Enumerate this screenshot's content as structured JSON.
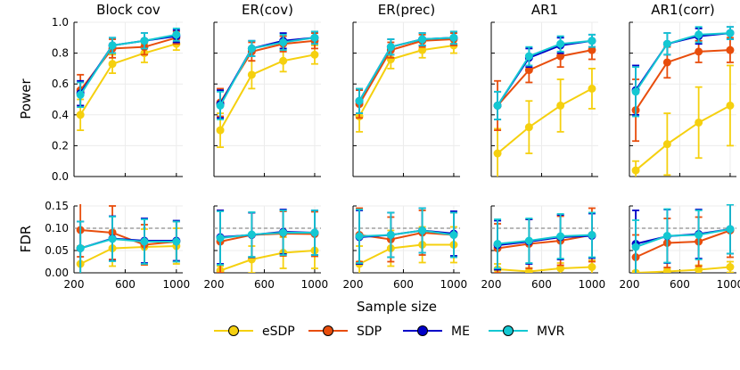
{
  "chart_data": {
    "type": "line",
    "figure_xlabel": "Sample size",
    "row_ylabels": [
      "Power",
      "FDR"
    ],
    "x": [
      250,
      500,
      750,
      1000
    ],
    "xlim": [
      200,
      1050
    ],
    "xticks": [
      200,
      600,
      1000
    ],
    "xtick_labels": [
      "200",
      "600",
      "1000"
    ],
    "power_ylim": [
      0,
      1
    ],
    "power_yticks": [
      0,
      0.2,
      0.4,
      0.6,
      0.8,
      1.0
    ],
    "power_ytick_labels": [
      "0.0",
      "0.2",
      "0.4",
      "0.6",
      "0.8",
      "1.0"
    ],
    "fdr_ylim": [
      0,
      0.15
    ],
    "fdr_yticks": [
      0,
      0.05,
      0.1,
      0.15
    ],
    "fdr_ytick_labels": [
      "0.00",
      "0.05",
      "0.10",
      "0.15"
    ],
    "fdr_target": 0.1,
    "grid": true,
    "legend_position": "bottom",
    "series": [
      {
        "name": "eSDP",
        "color": "#f5d00f"
      },
      {
        "name": "SDP",
        "color": "#e84d0c"
      },
      {
        "name": "ME",
        "color": "#0000c8"
      },
      {
        "name": "MVR",
        "color": "#14c8d2"
      }
    ],
    "panels": [
      {
        "title": "Block cov",
        "power": [
          {
            "values": [
              0.4,
              0.73,
              0.8,
              0.86
            ],
            "err": [
              0.1,
              0.06,
              0.06,
              0.04
            ]
          },
          {
            "values": [
              0.56,
              0.83,
              0.84,
              0.9
            ],
            "err": [
              0.1,
              0.06,
              0.05,
              0.04
            ]
          },
          {
            "values": [
              0.54,
              0.85,
              0.88,
              0.91
            ],
            "err": [
              0.08,
              0.05,
              0.05,
              0.04
            ]
          },
          {
            "values": [
              0.53,
              0.85,
              0.88,
              0.92
            ],
            "err": [
              0.08,
              0.05,
              0.05,
              0.04
            ]
          }
        ],
        "fdr": [
          {
            "values": [
              0.02,
              0.055,
              0.058,
              0.06
            ],
            "err": [
              0.04,
              0.04,
              0.04,
              0.04
            ]
          },
          {
            "values": [
              0.096,
              0.09,
              0.063,
              0.07
            ],
            "err": [
              0.06,
              0.06,
              0.045,
              0.045
            ]
          },
          {
            "values": [
              0.055,
              0.077,
              0.072,
              0.072
            ],
            "err": [
              0.06,
              0.05,
              0.05,
              0.045
            ]
          },
          {
            "values": [
              0.055,
              0.076,
              0.07,
              0.07
            ],
            "err": [
              0.06,
              0.05,
              0.05,
              0.045
            ]
          }
        ]
      },
      {
        "title": "ER(cov)",
        "power": [
          {
            "values": [
              0.3,
              0.66,
              0.75,
              0.79
            ],
            "err": [
              0.11,
              0.09,
              0.07,
              0.06
            ]
          },
          {
            "values": [
              0.48,
              0.81,
              0.86,
              0.88
            ],
            "err": [
              0.09,
              0.06,
              0.05,
              0.05
            ]
          },
          {
            "values": [
              0.47,
              0.83,
              0.88,
              0.9
            ],
            "err": [
              0.09,
              0.05,
              0.05,
              0.04
            ]
          },
          {
            "values": [
              0.46,
              0.83,
              0.87,
              0.9
            ],
            "err": [
              0.09,
              0.05,
              0.05,
              0.04
            ]
          }
        ],
        "fdr": [
          {
            "values": [
              0.005,
              0.03,
              0.045,
              0.05
            ],
            "err": [
              0.01,
              0.03,
              0.035,
              0.04
            ]
          },
          {
            "values": [
              0.07,
              0.085,
              0.088,
              0.087
            ],
            "err": [
              0.07,
              0.05,
              0.05,
              0.05
            ]
          },
          {
            "values": [
              0.08,
              0.085,
              0.092,
              0.09
            ],
            "err": [
              0.06,
              0.05,
              0.05,
              0.05
            ]
          },
          {
            "values": [
              0.078,
              0.086,
              0.09,
              0.09
            ],
            "err": [
              0.06,
              0.05,
              0.05,
              0.05
            ]
          }
        ]
      },
      {
        "title": "ER(prec)",
        "power": [
          {
            "values": [
              0.39,
              0.76,
              0.82,
              0.85
            ],
            "err": [
              0.1,
              0.06,
              0.05,
              0.05
            ]
          },
          {
            "values": [
              0.47,
              0.82,
              0.88,
              0.89
            ],
            "err": [
              0.09,
              0.05,
              0.04,
              0.04
            ]
          },
          {
            "values": [
              0.49,
              0.84,
              0.89,
              0.9
            ],
            "err": [
              0.08,
              0.05,
              0.04,
              0.04
            ]
          },
          {
            "values": [
              0.49,
              0.84,
              0.89,
              0.9
            ],
            "err": [
              0.08,
              0.05,
              0.04,
              0.04
            ]
          }
        ],
        "fdr": [
          {
            "values": [
              0.02,
              0.055,
              0.063,
              0.063
            ],
            "err": [
              0.04,
              0.04,
              0.04,
              0.04
            ]
          },
          {
            "values": [
              0.085,
              0.075,
              0.09,
              0.085
            ],
            "err": [
              0.06,
              0.05,
              0.05,
              0.05
            ]
          },
          {
            "values": [
              0.08,
              0.085,
              0.095,
              0.088
            ],
            "err": [
              0.06,
              0.05,
              0.05,
              0.05
            ]
          },
          {
            "values": [
              0.082,
              0.085,
              0.095,
              0.085
            ],
            "err": [
              0.06,
              0.05,
              0.05,
              0.05
            ]
          }
        ]
      },
      {
        "title": "AR1",
        "power": [
          {
            "values": [
              0.15,
              0.32,
              0.46,
              0.57
            ],
            "err": [
              0.16,
              0.17,
              0.17,
              0.13
            ]
          },
          {
            "values": [
              0.46,
              0.69,
              0.78,
              0.82
            ],
            "err": [
              0.16,
              0.08,
              0.07,
              0.06
            ]
          },
          {
            "values": [
              0.46,
              0.77,
              0.85,
              0.88
            ],
            "err": [
              0.09,
              0.06,
              0.05,
              0.04
            ]
          },
          {
            "values": [
              0.46,
              0.78,
              0.86,
              0.88
            ],
            "err": [
              0.09,
              0.06,
              0.05,
              0.04
            ]
          }
        ],
        "fdr": [
          {
            "values": [
              0.008,
              0.003,
              0.01,
              0.013
            ],
            "err": [
              0.012,
              0.008,
              0.012,
              0.015
            ]
          },
          {
            "values": [
              0.055,
              0.065,
              0.072,
              0.085
            ],
            "err": [
              0.055,
              0.055,
              0.055,
              0.06
            ]
          },
          {
            "values": [
              0.062,
              0.07,
              0.08,
              0.083
            ],
            "err": [
              0.055,
              0.05,
              0.05,
              0.05
            ]
          },
          {
            "values": [
              0.065,
              0.072,
              0.082,
              0.085
            ],
            "err": [
              0.055,
              0.05,
              0.05,
              0.05
            ]
          }
        ]
      },
      {
        "title": "AR1(corr)",
        "power": [
          {
            "values": [
              0.04,
              0.21,
              0.35,
              0.46
            ],
            "err": [
              0.06,
              0.2,
              0.23,
              0.26
            ]
          },
          {
            "values": [
              0.43,
              0.74,
              0.81,
              0.82
            ],
            "err": [
              0.2,
              0.1,
              0.07,
              0.08
            ]
          },
          {
            "values": [
              0.56,
              0.86,
              0.91,
              0.93
            ],
            "err": [
              0.16,
              0.07,
              0.05,
              0.04
            ]
          },
          {
            "values": [
              0.55,
              0.86,
              0.92,
              0.93
            ],
            "err": [
              0.16,
              0.07,
              0.05,
              0.04
            ]
          }
        ],
        "fdr": [
          {
            "values": [
              0.0,
              0.003,
              0.007,
              0.013
            ],
            "err": [
              0.004,
              0.006,
              0.01,
              0.012
            ]
          },
          {
            "values": [
              0.035,
              0.067,
              0.07,
              0.095
            ],
            "err": [
              0.05,
              0.055,
              0.055,
              0.06
            ]
          },
          {
            "values": [
              0.065,
              0.082,
              0.087,
              0.098
            ],
            "err": [
              0.075,
              0.06,
              0.055,
              0.055
            ]
          },
          {
            "values": [
              0.058,
              0.083,
              0.085,
              0.098
            ],
            "err": [
              0.06,
              0.06,
              0.055,
              0.055
            ]
          }
        ]
      }
    ]
  }
}
